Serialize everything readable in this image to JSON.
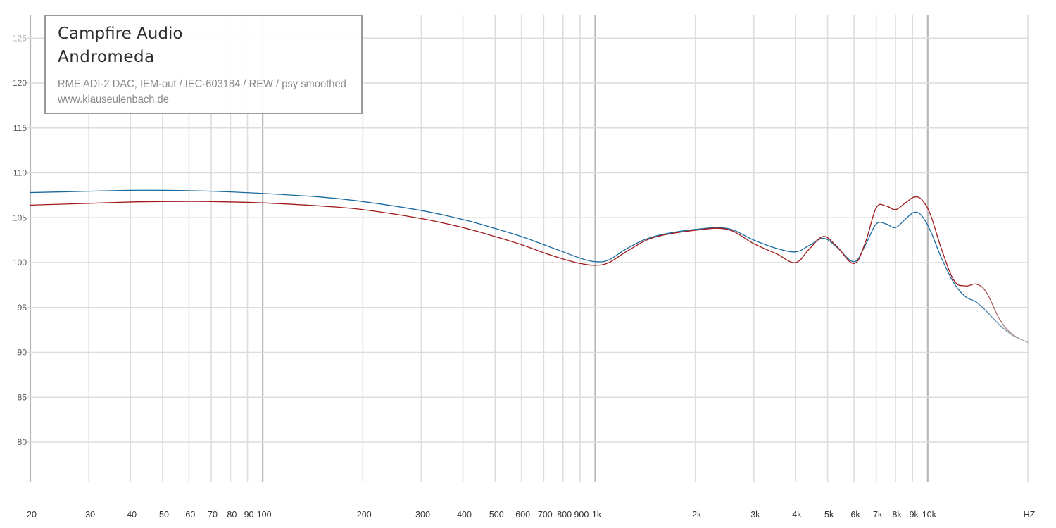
{
  "title_box": {
    "line1": "Campfire Audio",
    "line2": "Andromeda",
    "subtitle1": "RME ADI-2 DAC, IEM-out / IEC-603184 / REW / psy smoothed",
    "subtitle2": "www.klauseulenbach.de"
  },
  "chart_data": {
    "type": "line",
    "title": "Campfire Audio Andromeda",
    "xlabel": "HZ",
    "ylabel": "",
    "x_scale": "log",
    "xlim": [
      20,
      20000
    ],
    "ylim": [
      75,
      127
    ],
    "grid": true,
    "legend": "none",
    "y_ticks": [
      80,
      85,
      90,
      95,
      100,
      105,
      110,
      115,
      120,
      125
    ],
    "x_ticks": [
      {
        "value": 20,
        "label": "20"
      },
      {
        "value": 30,
        "label": "30"
      },
      {
        "value": 40,
        "label": "40"
      },
      {
        "value": 50,
        "label": "50"
      },
      {
        "value": 60,
        "label": "60"
      },
      {
        "value": 70,
        "label": "70"
      },
      {
        "value": 80,
        "label": "80"
      },
      {
        "value": 90,
        "label": "90"
      },
      {
        "value": 100,
        "label": "100"
      },
      {
        "value": 200,
        "label": "200"
      },
      {
        "value": 300,
        "label": "300"
      },
      {
        "value": 400,
        "label": "400"
      },
      {
        "value": 500,
        "label": "500"
      },
      {
        "value": 600,
        "label": "600"
      },
      {
        "value": 700,
        "label": "700"
      },
      {
        "value": 800,
        "label": "800"
      },
      {
        "value": 900,
        "label": "900"
      },
      {
        "value": 1000,
        "label": "1k"
      },
      {
        "value": 2000,
        "label": "2k"
      },
      {
        "value": 3000,
        "label": "3k"
      },
      {
        "value": 4000,
        "label": "4k"
      },
      {
        "value": 5000,
        "label": "5k"
      },
      {
        "value": 6000,
        "label": "6k"
      },
      {
        "value": 7000,
        "label": "7k"
      },
      {
        "value": 8000,
        "label": "8k"
      },
      {
        "value": 9000,
        "label": "9k"
      },
      {
        "value": 10000,
        "label": "10k"
      },
      {
        "value": 20000,
        "label": "HZ"
      }
    ],
    "major_x_ticks": [
      20,
      100,
      1000,
      10000
    ],
    "series": [
      {
        "color": "#1a6aa0",
        "fade_color": "#b5b5b5",
        "fade_from": 13000,
        "points": [
          [
            20,
            107.8
          ],
          [
            30,
            107.95
          ],
          [
            40,
            108.05
          ],
          [
            50,
            108.05
          ],
          [
            70,
            107.95
          ],
          [
            100,
            107.7
          ],
          [
            150,
            107.3
          ],
          [
            200,
            106.8
          ],
          [
            300,
            105.8
          ],
          [
            400,
            104.8
          ],
          [
            500,
            103.8
          ],
          [
            600,
            102.9
          ],
          [
            700,
            102.0
          ],
          [
            800,
            101.2
          ],
          [
            900,
            100.5
          ],
          [
            1000,
            100.1
          ],
          [
            1100,
            100.3
          ],
          [
            1250,
            101.6
          ],
          [
            1500,
            102.9
          ],
          [
            2000,
            103.7
          ],
          [
            2500,
            103.8
          ],
          [
            3000,
            102.5
          ],
          [
            3500,
            101.6
          ],
          [
            4000,
            101.2
          ],
          [
            4400,
            101.9
          ],
          [
            4850,
            102.7
          ],
          [
            5300,
            101.8
          ],
          [
            6000,
            100.1
          ],
          [
            6500,
            102.0
          ],
          [
            7000,
            104.3
          ],
          [
            7500,
            104.3
          ],
          [
            8000,
            103.9
          ],
          [
            8600,
            104.9
          ],
          [
            9100,
            105.6
          ],
          [
            9600,
            105.2
          ],
          [
            10200,
            103.5
          ],
          [
            11000,
            100.5
          ],
          [
            12000,
            97.7
          ],
          [
            13000,
            96.2
          ],
          [
            14000,
            95.6
          ],
          [
            15000,
            94.6
          ],
          [
            16500,
            93.0
          ],
          [
            18000,
            91.9
          ],
          [
            20000,
            91.1
          ]
        ]
      },
      {
        "color": "#a01818",
        "fade_color": "#b5b5b5",
        "fade_from": 13000,
        "points": [
          [
            20,
            106.4
          ],
          [
            30,
            106.6
          ],
          [
            40,
            106.75
          ],
          [
            50,
            106.8
          ],
          [
            70,
            106.8
          ],
          [
            100,
            106.65
          ],
          [
            150,
            106.3
          ],
          [
            200,
            105.9
          ],
          [
            300,
            104.9
          ],
          [
            400,
            103.9
          ],
          [
            500,
            102.9
          ],
          [
            600,
            102.0
          ],
          [
            700,
            101.1
          ],
          [
            800,
            100.4
          ],
          [
            900,
            99.9
          ],
          [
            1000,
            99.7
          ],
          [
            1100,
            100.0
          ],
          [
            1250,
            101.3
          ],
          [
            1500,
            102.8
          ],
          [
            2000,
            103.6
          ],
          [
            2500,
            103.7
          ],
          [
            3000,
            102.1
          ],
          [
            3500,
            101.0
          ],
          [
            4000,
            100.0
          ],
          [
            4400,
            101.5
          ],
          [
            4850,
            102.9
          ],
          [
            5300,
            101.9
          ],
          [
            6000,
            99.9
          ],
          [
            6500,
            102.3
          ],
          [
            7000,
            106.1
          ],
          [
            7500,
            106.3
          ],
          [
            8000,
            105.9
          ],
          [
            8600,
            106.7
          ],
          [
            9100,
            107.3
          ],
          [
            9600,
            107.0
          ],
          [
            10200,
            105.3
          ],
          [
            11000,
            101.5
          ],
          [
            12000,
            98.0
          ],
          [
            13000,
            97.4
          ],
          [
            14000,
            97.6
          ],
          [
            15000,
            96.7
          ],
          [
            16500,
            93.6
          ],
          [
            18000,
            92.0
          ],
          [
            20000,
            91.1
          ]
        ]
      }
    ]
  }
}
